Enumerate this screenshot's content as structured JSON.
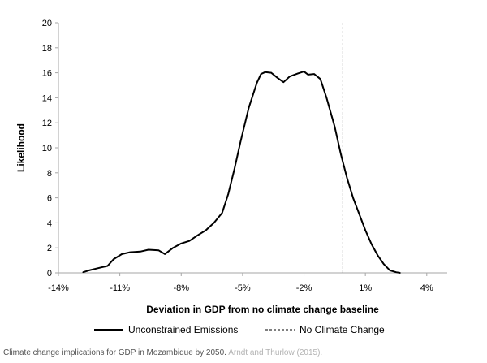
{
  "chart_data": {
    "type": "line",
    "title": "",
    "xlabel": "Deviation in GDP from no climate change baseline",
    "ylabel": "Likelihood",
    "xlim": [
      -14,
      5
    ],
    "ylim": [
      0,
      20
    ],
    "x_ticks": [
      -14,
      -11,
      -8,
      -5,
      -2,
      1,
      4
    ],
    "x_tick_labels": [
      "-14%",
      "-11%",
      "-8%",
      "-5%",
      "-2%",
      "1%",
      "4%"
    ],
    "y_ticks": [
      0,
      2,
      4,
      6,
      8,
      10,
      12,
      14,
      16,
      18,
      20
    ],
    "y_tick_labels": [
      "0",
      "2",
      "4",
      "6",
      "8",
      "10",
      "12",
      "14",
      "16",
      "18",
      "20"
    ],
    "grid": false,
    "legend_position": "bottom",
    "series": [
      {
        "name": "Unconstrained Emissions",
        "style": "solid",
        "points": [
          [
            -12.8,
            0.05
          ],
          [
            -12.5,
            0.2
          ],
          [
            -12.0,
            0.4
          ],
          [
            -11.6,
            0.55
          ],
          [
            -11.3,
            1.1
          ],
          [
            -10.9,
            1.5
          ],
          [
            -10.5,
            1.65
          ],
          [
            -10.0,
            1.7
          ],
          [
            -9.6,
            1.85
          ],
          [
            -9.1,
            1.8
          ],
          [
            -8.8,
            1.5
          ],
          [
            -8.4,
            2.0
          ],
          [
            -8.0,
            2.35
          ],
          [
            -7.6,
            2.55
          ],
          [
            -7.2,
            3.0
          ],
          [
            -6.8,
            3.4
          ],
          [
            -6.4,
            4.0
          ],
          [
            -6.0,
            4.8
          ],
          [
            -5.7,
            6.3
          ],
          [
            -5.4,
            8.3
          ],
          [
            -5.1,
            10.5
          ],
          [
            -4.7,
            13.2
          ],
          [
            -4.3,
            15.2
          ],
          [
            -4.1,
            15.9
          ],
          [
            -3.9,
            16.05
          ],
          [
            -3.6,
            16.0
          ],
          [
            -3.3,
            15.6
          ],
          [
            -3.0,
            15.25
          ],
          [
            -2.7,
            15.7
          ],
          [
            -2.3,
            15.95
          ],
          [
            -2.0,
            16.1
          ],
          [
            -1.8,
            15.85
          ],
          [
            -1.5,
            15.9
          ],
          [
            -1.2,
            15.5
          ],
          [
            -0.9,
            14.0
          ],
          [
            -0.5,
            11.7
          ],
          [
            -0.2,
            9.5
          ],
          [
            0.1,
            7.6
          ],
          [
            0.4,
            6.0
          ],
          [
            0.7,
            4.7
          ],
          [
            1.0,
            3.4
          ],
          [
            1.3,
            2.3
          ],
          [
            1.6,
            1.4
          ],
          [
            1.9,
            0.7
          ],
          [
            2.2,
            0.2
          ],
          [
            2.5,
            0.05
          ],
          [
            2.7,
            0.0
          ]
        ]
      },
      {
        "name": "No Climate Change",
        "style": "dashed",
        "x_value": -0.1
      }
    ]
  },
  "caption": {
    "text": "Climate change implications for GDP in Mozambique by 2050.",
    "source": "Arndt and Thurlow (2015)."
  }
}
